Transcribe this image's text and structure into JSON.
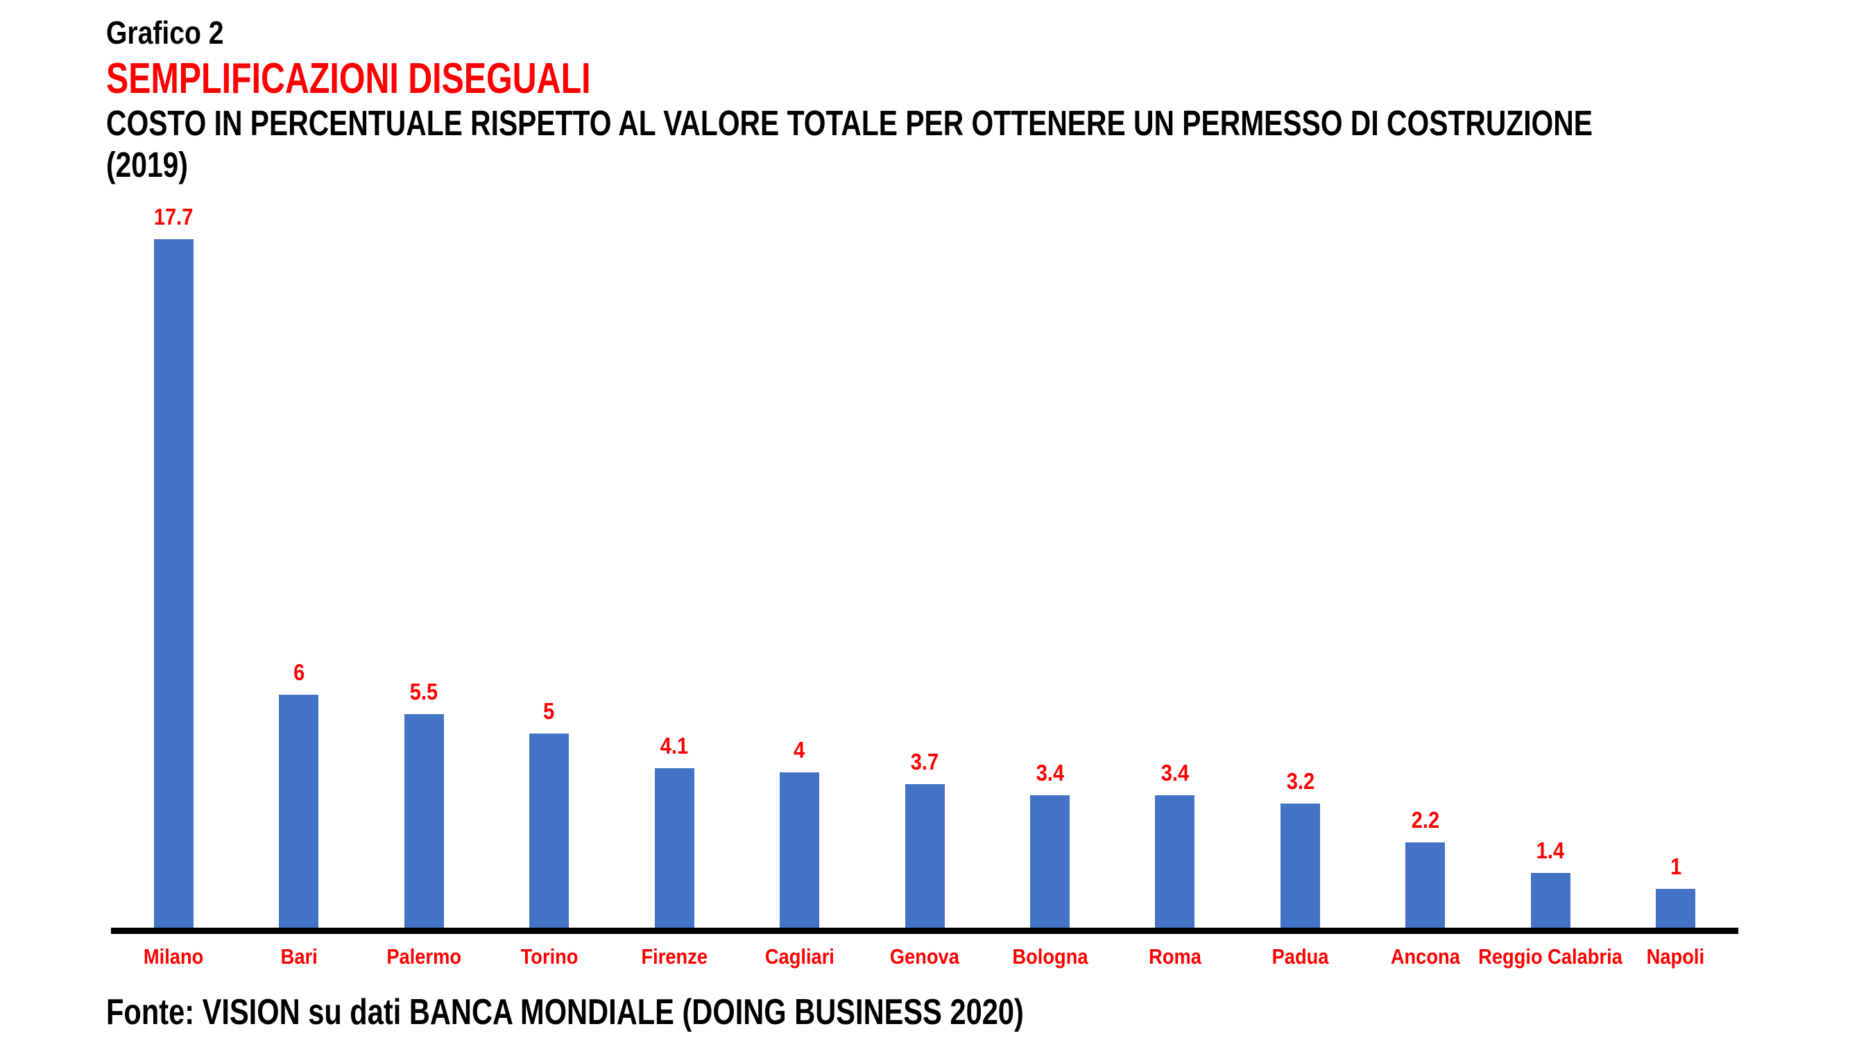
{
  "header": {
    "kicker": "Grafico 2",
    "title": "SEMPLIFICAZIONI DISEGUALI",
    "subtitle_line1": "COSTO IN PERCENTUALE RISPETTO AL VALORE TOTALE PER OTTENERE UN PERMESSO DI COSTRUZIONE",
    "subtitle_line2": "(2019)"
  },
  "footer": {
    "source": "Fonte: VISION su dati BANCA MONDIALE (DOING BUSINESS 2020)"
  },
  "colors": {
    "background": "#FFFFFF",
    "text": "#000000",
    "accent_red": "#FF0000",
    "bar_blue": "#4472C4",
    "axis": "#000000"
  },
  "chart_data": {
    "type": "bar",
    "title": "SEMPLIFICAZIONI DISEGUALI",
    "subtitle": "COSTO IN PERCENTUALE RISPETTO AL VALORE TOTALE PER OTTENERE UN PERMESSO DI COSTRUZIONE (2019)",
    "categories": [
      "Milano",
      "Bari",
      "Palermo",
      "Torino",
      "Firenze",
      "Cagliari",
      "Genova",
      "Bologna",
      "Roma",
      "Padua",
      "Ancona",
      "Reggio Calabria",
      "Napoli"
    ],
    "values": [
      17.7,
      6,
      5.5,
      5,
      4.1,
      4,
      3.7,
      3.4,
      3.4,
      3.2,
      2.2,
      1.4,
      1
    ],
    "value_labels": [
      "17.7",
      "6",
      "5.5",
      "5",
      "4.1",
      "4",
      "3.7",
      "3.4",
      "3.4",
      "3.2",
      "2.2",
      "1.4",
      "1"
    ],
    "xlabel": "",
    "ylabel": "",
    "ylim": [
      0,
      18.6
    ],
    "grid": false,
    "legend": "none",
    "yaxis_visible": false,
    "bar_color": "#4472C4",
    "value_label_color": "#FF0000",
    "category_label_color": "#FF0000",
    "source": "Fonte: VISION su dati BANCA MONDIALE (DOING BUSINESS 2020)"
  }
}
